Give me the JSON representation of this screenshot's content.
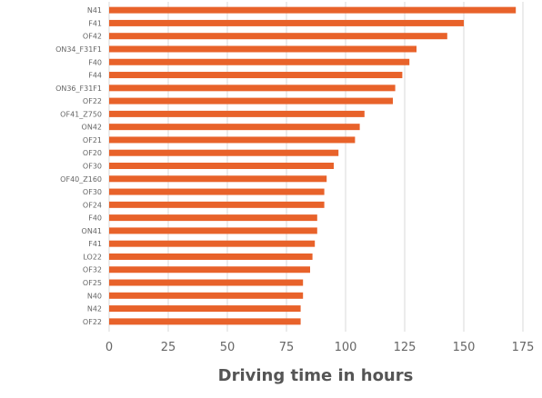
{
  "chart_data": {
    "type": "bar",
    "orientation": "horizontal",
    "title": "",
    "xlabel": "Driving time in hours",
    "ylabel": "",
    "xlim": [
      0,
      175
    ],
    "xticks": [
      0,
      25,
      50,
      75,
      100,
      125,
      150,
      175
    ],
    "grid": "vertical",
    "bar_color": "#e8622a",
    "grid_color": "#d9d9d9",
    "categories": [
      "N41",
      "F41",
      "OF42",
      "ON34_F31F1",
      "F40",
      "F44",
      "ON36_F31F1",
      "OF22",
      "OF41_Z750",
      "ON42",
      "OF21",
      "OF20",
      "OF30",
      "OF40_Z160",
      "OF30",
      "OF24",
      "F40",
      "ON41",
      "F41",
      "LO22",
      "OF32",
      "OF25",
      "N40",
      "N42",
      "OF22"
    ],
    "values": [
      172,
      150,
      143,
      130,
      127,
      124,
      121,
      120,
      108,
      106,
      104,
      97,
      95,
      92,
      91,
      91,
      88,
      88,
      87,
      86,
      85,
      82,
      82,
      81,
      81
    ]
  }
}
